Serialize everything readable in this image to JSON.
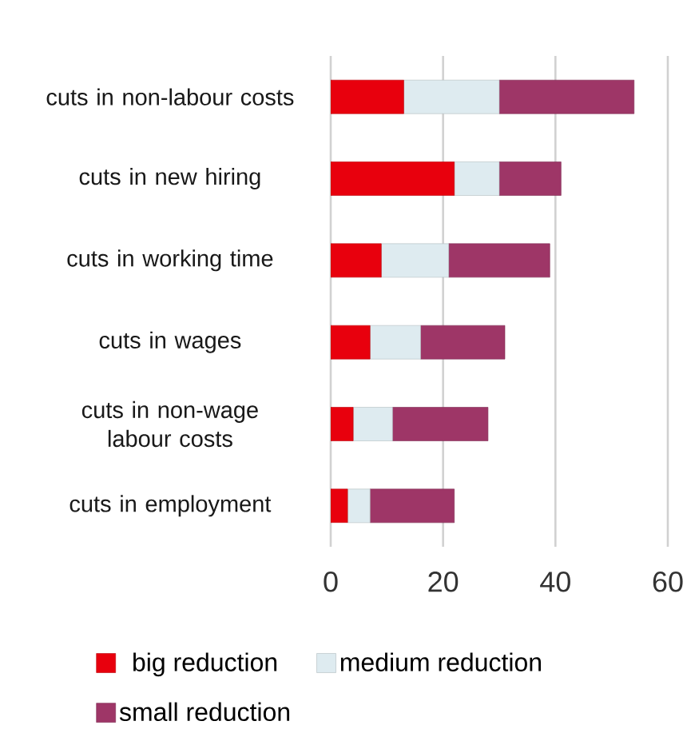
{
  "chart_data": {
    "type": "bar",
    "orientation": "horizontal",
    "stacked": true,
    "categories": [
      "cuts in non-labour costs",
      "cuts in new hiring",
      "cuts in working time",
      "cuts in wages",
      "cuts in non-wage labour costs",
      "cuts in employment"
    ],
    "series": [
      {
        "name": "big reduction",
        "color": "#e8000d",
        "values": [
          13,
          22,
          9,
          7,
          4,
          3
        ]
      },
      {
        "name": "medium reduction",
        "color": "#deebf0",
        "values": [
          17,
          8,
          12,
          9,
          7,
          4
        ]
      },
      {
        "name": "small reduction",
        "color": "#9e3667",
        "values": [
          24,
          11,
          18,
          15,
          17,
          15
        ]
      }
    ],
    "xlim": [
      0,
      60
    ],
    "xticks": [
      0,
      20,
      40,
      60
    ],
    "grid": "x",
    "legend": "bottom"
  }
}
